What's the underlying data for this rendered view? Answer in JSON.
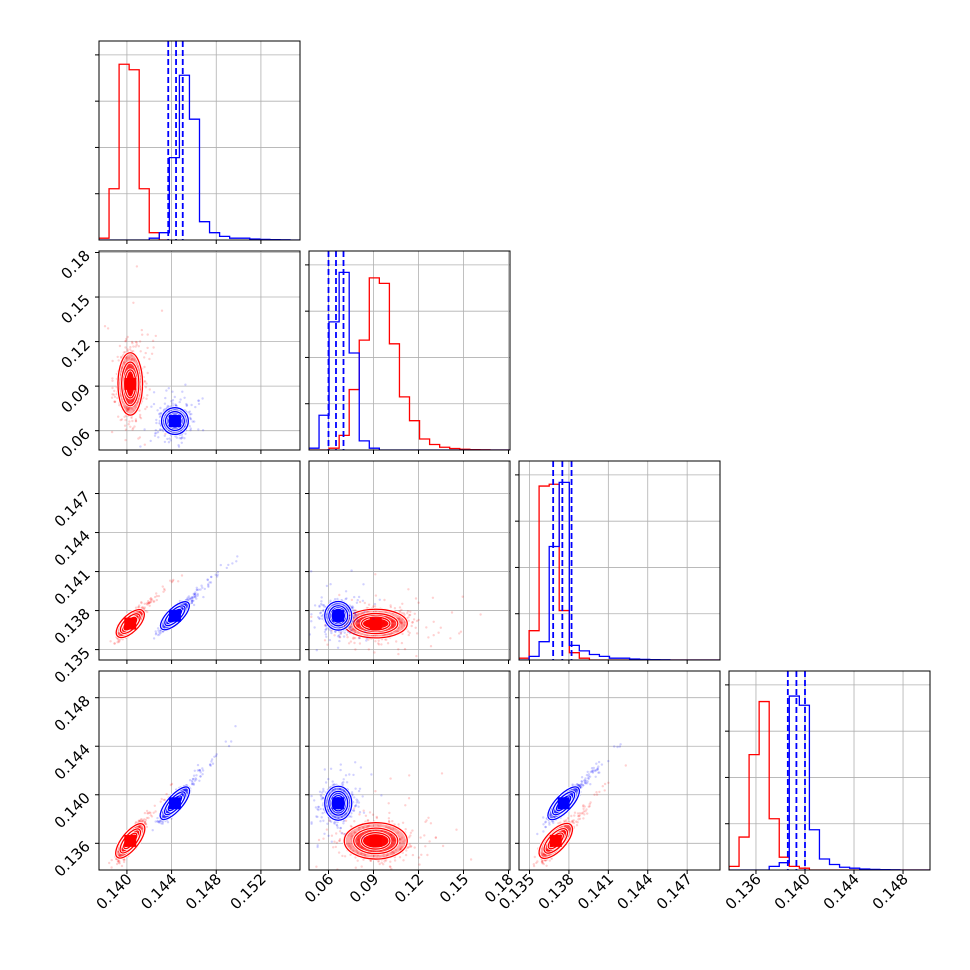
{
  "chart_data": {
    "type": "corner",
    "n_params": 4,
    "grid": true,
    "params": [
      {
        "range": [
          0.1375,
          0.1555
        ],
        "ticks": [
          "0.140",
          "0.144",
          "0.148",
          "0.152"
        ],
        "tick_values": [
          0.14,
          0.144,
          0.148,
          0.152
        ]
      },
      {
        "range": [
          0.047,
          0.181
        ],
        "ticks": [
          "0.06",
          "0.09",
          "0.12",
          "0.15",
          "0.18"
        ],
        "tick_values": [
          0.06,
          0.09,
          0.12,
          0.15,
          0.18
        ]
      },
      {
        "range": [
          0.1342,
          0.1495
        ],
        "ticks": [
          "0.135",
          "0.138",
          "0.141",
          "0.144",
          "0.147"
        ],
        "tick_values": [
          0.135,
          0.138,
          0.141,
          0.144,
          0.147
        ]
      },
      {
        "range": [
          0.1338,
          0.1502
        ],
        "ticks": [
          "0.136",
          "0.140",
          "0.144",
          "0.148"
        ],
        "tick_values": [
          0.136,
          0.14,
          0.144,
          0.148
        ]
      }
    ],
    "series": [
      {
        "color": "#ff0000",
        "mean": [
          0.1403,
          0.0915,
          0.137,
          0.1362
        ],
        "spread": [
          0.00055,
          0.0105,
          0.00055,
          0.00075
        ],
        "correlations": {
          "0-1": 0.0,
          "0-2": 0.85,
          "0-3": 0.85,
          "1-2": 0.05,
          "1-3": 0.05,
          "2-3": 0.85
        },
        "histograms": [
          {
            "edges": [
              0.1375,
              0.1384,
              0.1393,
              0.1402,
              0.1411,
              0.142,
              0.1429,
              0.1438
            ],
            "counts": [
              0.01,
              0.28,
              0.96,
              0.93,
              0.28,
              0.04,
              0.0
            ]
          },
          {
            "edges": [
              0.047,
              0.0537,
              0.0604,
              0.0671,
              0.0738,
              0.0805,
              0.0872,
              0.0939,
              0.1006,
              0.1073,
              0.114,
              0.1207,
              0.1274,
              0.1341,
              0.1408,
              0.1475,
              0.1542,
              0.1609,
              0.1676,
              0.1743,
              0.181
            ],
            "counts": [
              0.0,
              0.0,
              0.01,
              0.08,
              0.33,
              0.6,
              0.94,
              0.91,
              0.58,
              0.29,
              0.16,
              0.06,
              0.03,
              0.015,
              0.008,
              0.004,
              0.002,
              0.001,
              0.0,
              0.0
            ]
          },
          {
            "edges": [
              0.1342,
              0.13497,
              0.13573,
              0.1365,
              0.13726,
              0.13803,
              0.13879,
              0.13956,
              0.14032,
              0.14109,
              0.14185,
              0.14262,
              0.14338,
              0.14415,
              0.14491,
              0.14568,
              0.14644,
              0.14721,
              0.14797,
              0.14874,
              0.1495
            ],
            "counts": [
              0.01,
              0.16,
              0.95,
              0.96,
              0.27,
              0.04,
              0.01,
              0.0,
              0.0,
              0.0,
              0.0,
              0.0,
              0.0,
              0.0,
              0.0,
              0.0,
              0.0,
              0.0,
              0.0,
              0.0
            ]
          },
          {
            "edges": [
              0.1338,
              0.13462,
              0.13544,
              0.13626,
              0.13708,
              0.1379,
              0.13872,
              0.13954,
              0.14036,
              0.14118,
              0.142,
              0.14282,
              0.14364,
              0.14446,
              0.14528,
              0.1461,
              0.14692,
              0.14774,
              0.14856,
              0.14938,
              0.1502
            ],
            "counts": [
              0.02,
              0.18,
              0.63,
              0.92,
              0.28,
              0.07,
              0.02,
              0.01,
              0.0,
              0.0,
              0.0,
              0.0,
              0.0,
              0.0,
              0.0,
              0.0,
              0.0,
              0.0,
              0.0,
              0.0
            ]
          }
        ]
      },
      {
        "color": "#0000ff",
        "mean": [
          0.1443,
          0.0665,
          0.1376,
          0.1393
        ],
        "spread": [
          0.0006,
          0.0045,
          0.00055,
          0.0007
        ],
        "quantiles": [
          [
            0.1437,
            0.1444,
            0.145
          ],
          [
            0.06,
            0.065,
            0.07
          ],
          [
            0.1368,
            0.1375,
            0.1382
          ],
          [
            0.1386,
            0.1393,
            0.14
          ]
        ],
        "correlations": {
          "0-1": 0.0,
          "0-2": 0.9,
          "0-3": 0.9,
          "1-2": 0.0,
          "1-3": 0.0,
          "2-3": 0.9
        },
        "histograms": [
          {
            "edges": [
              0.1375,
              0.1384,
              0.1393,
              0.1402,
              0.1411,
              0.142,
              0.1429,
              0.1438,
              0.1447,
              0.1456,
              0.1465,
              0.1474,
              0.1483,
              0.1492,
              0.1501,
              0.151,
              0.1519,
              0.1528,
              0.1537,
              0.1546,
              0.1555
            ],
            "counts": [
              0.0,
              0.0,
              0.0,
              0.0,
              0.0,
              0.01,
              0.04,
              0.45,
              0.9,
              0.66,
              0.1,
              0.04,
              0.02,
              0.01,
              0.01,
              0.005,
              0.003,
              0.002,
              0.001,
              0.0
            ]
          },
          {
            "edges": [
              0.047,
              0.0537,
              0.0604,
              0.0671,
              0.0738,
              0.0805,
              0.0872,
              0.0939,
              0.1006,
              0.1073,
              0.114,
              0.1207,
              0.1274,
              0.1341,
              0.1408,
              0.1475,
              0.1542,
              0.1609,
              0.1676,
              0.1743,
              0.181
            ],
            "counts": [
              0.01,
              0.19,
              0.7,
              0.97,
              0.53,
              0.05,
              0.01,
              0.0,
              0.0,
              0.0,
              0.0,
              0.0,
              0.0,
              0.0,
              0.0,
              0.0,
              0.0,
              0.0,
              0.0,
              0.0
            ]
          },
          {
            "edges": [
              0.1342,
              0.13497,
              0.13573,
              0.1365,
              0.13726,
              0.13803,
              0.13879,
              0.13956,
              0.14032,
              0.14109,
              0.14185,
              0.14262,
              0.14338,
              0.14415,
              0.14491,
              0.14568,
              0.14644,
              0.14721,
              0.14797,
              0.14874,
              0.1495
            ],
            "counts": [
              0.0,
              0.02,
              0.1,
              0.62,
              0.97,
              0.08,
              0.05,
              0.03,
              0.02,
              0.01,
              0.01,
              0.005,
              0.003,
              0.002,
              0.001,
              0.0,
              0.0,
              0.0,
              0.0,
              0.0
            ]
          },
          {
            "edges": [
              0.1338,
              0.13462,
              0.13544,
              0.13626,
              0.13708,
              0.1379,
              0.13872,
              0.13954,
              0.14036,
              0.14118,
              0.142,
              0.14282,
              0.14364,
              0.14446,
              0.14528,
              0.1461,
              0.14692,
              0.14774,
              0.14856,
              0.14938,
              0.1502
            ],
            "counts": [
              0.0,
              0.0,
              0.0,
              0.0,
              0.02,
              0.04,
              0.95,
              0.9,
              0.22,
              0.06,
              0.03,
              0.015,
              0.01,
              0.005,
              0.003,
              0.002,
              0.001,
              0.0,
              0.0,
              0.0
            ]
          }
        ]
      }
    ]
  }
}
